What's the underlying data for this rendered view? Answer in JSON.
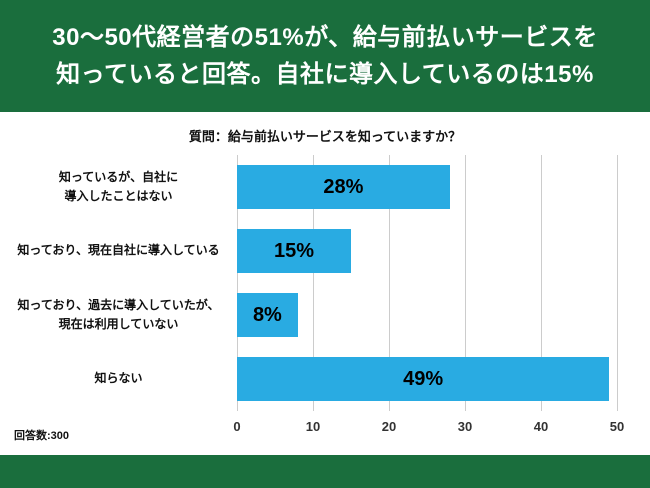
{
  "colors": {
    "green": "#1a6e3d",
    "bar_blue": "#29abe2",
    "grid_gray": "#cccccc"
  },
  "header": {
    "title_line1": "30〜50代経営者の51%が、給与前払いサービスを",
    "title_line2": "知っていると回答。自社に導入しているのは15%"
  },
  "chart_data": {
    "type": "bar",
    "orientation": "horizontal",
    "title": "質問：給与前払いサービスを知っていますか？",
    "categories": [
      "知っているが、自社に\n導入したことはない",
      "知っており、現在自社に導入している",
      "知っており、過去に導入していたが、\n現在は利用していない",
      "知らない"
    ],
    "values": [
      28,
      15,
      8,
      49
    ],
    "value_labels": [
      "28%",
      "15%",
      "8%",
      "49%"
    ],
    "xlim": [
      0,
      50
    ],
    "x_ticks": [
      0,
      10,
      20,
      30,
      40,
      50
    ],
    "bar_color": "#29abe2",
    "grid_color": "#cccccc",
    "grid": true,
    "legend": "none"
  },
  "footnote": "回答数:300"
}
